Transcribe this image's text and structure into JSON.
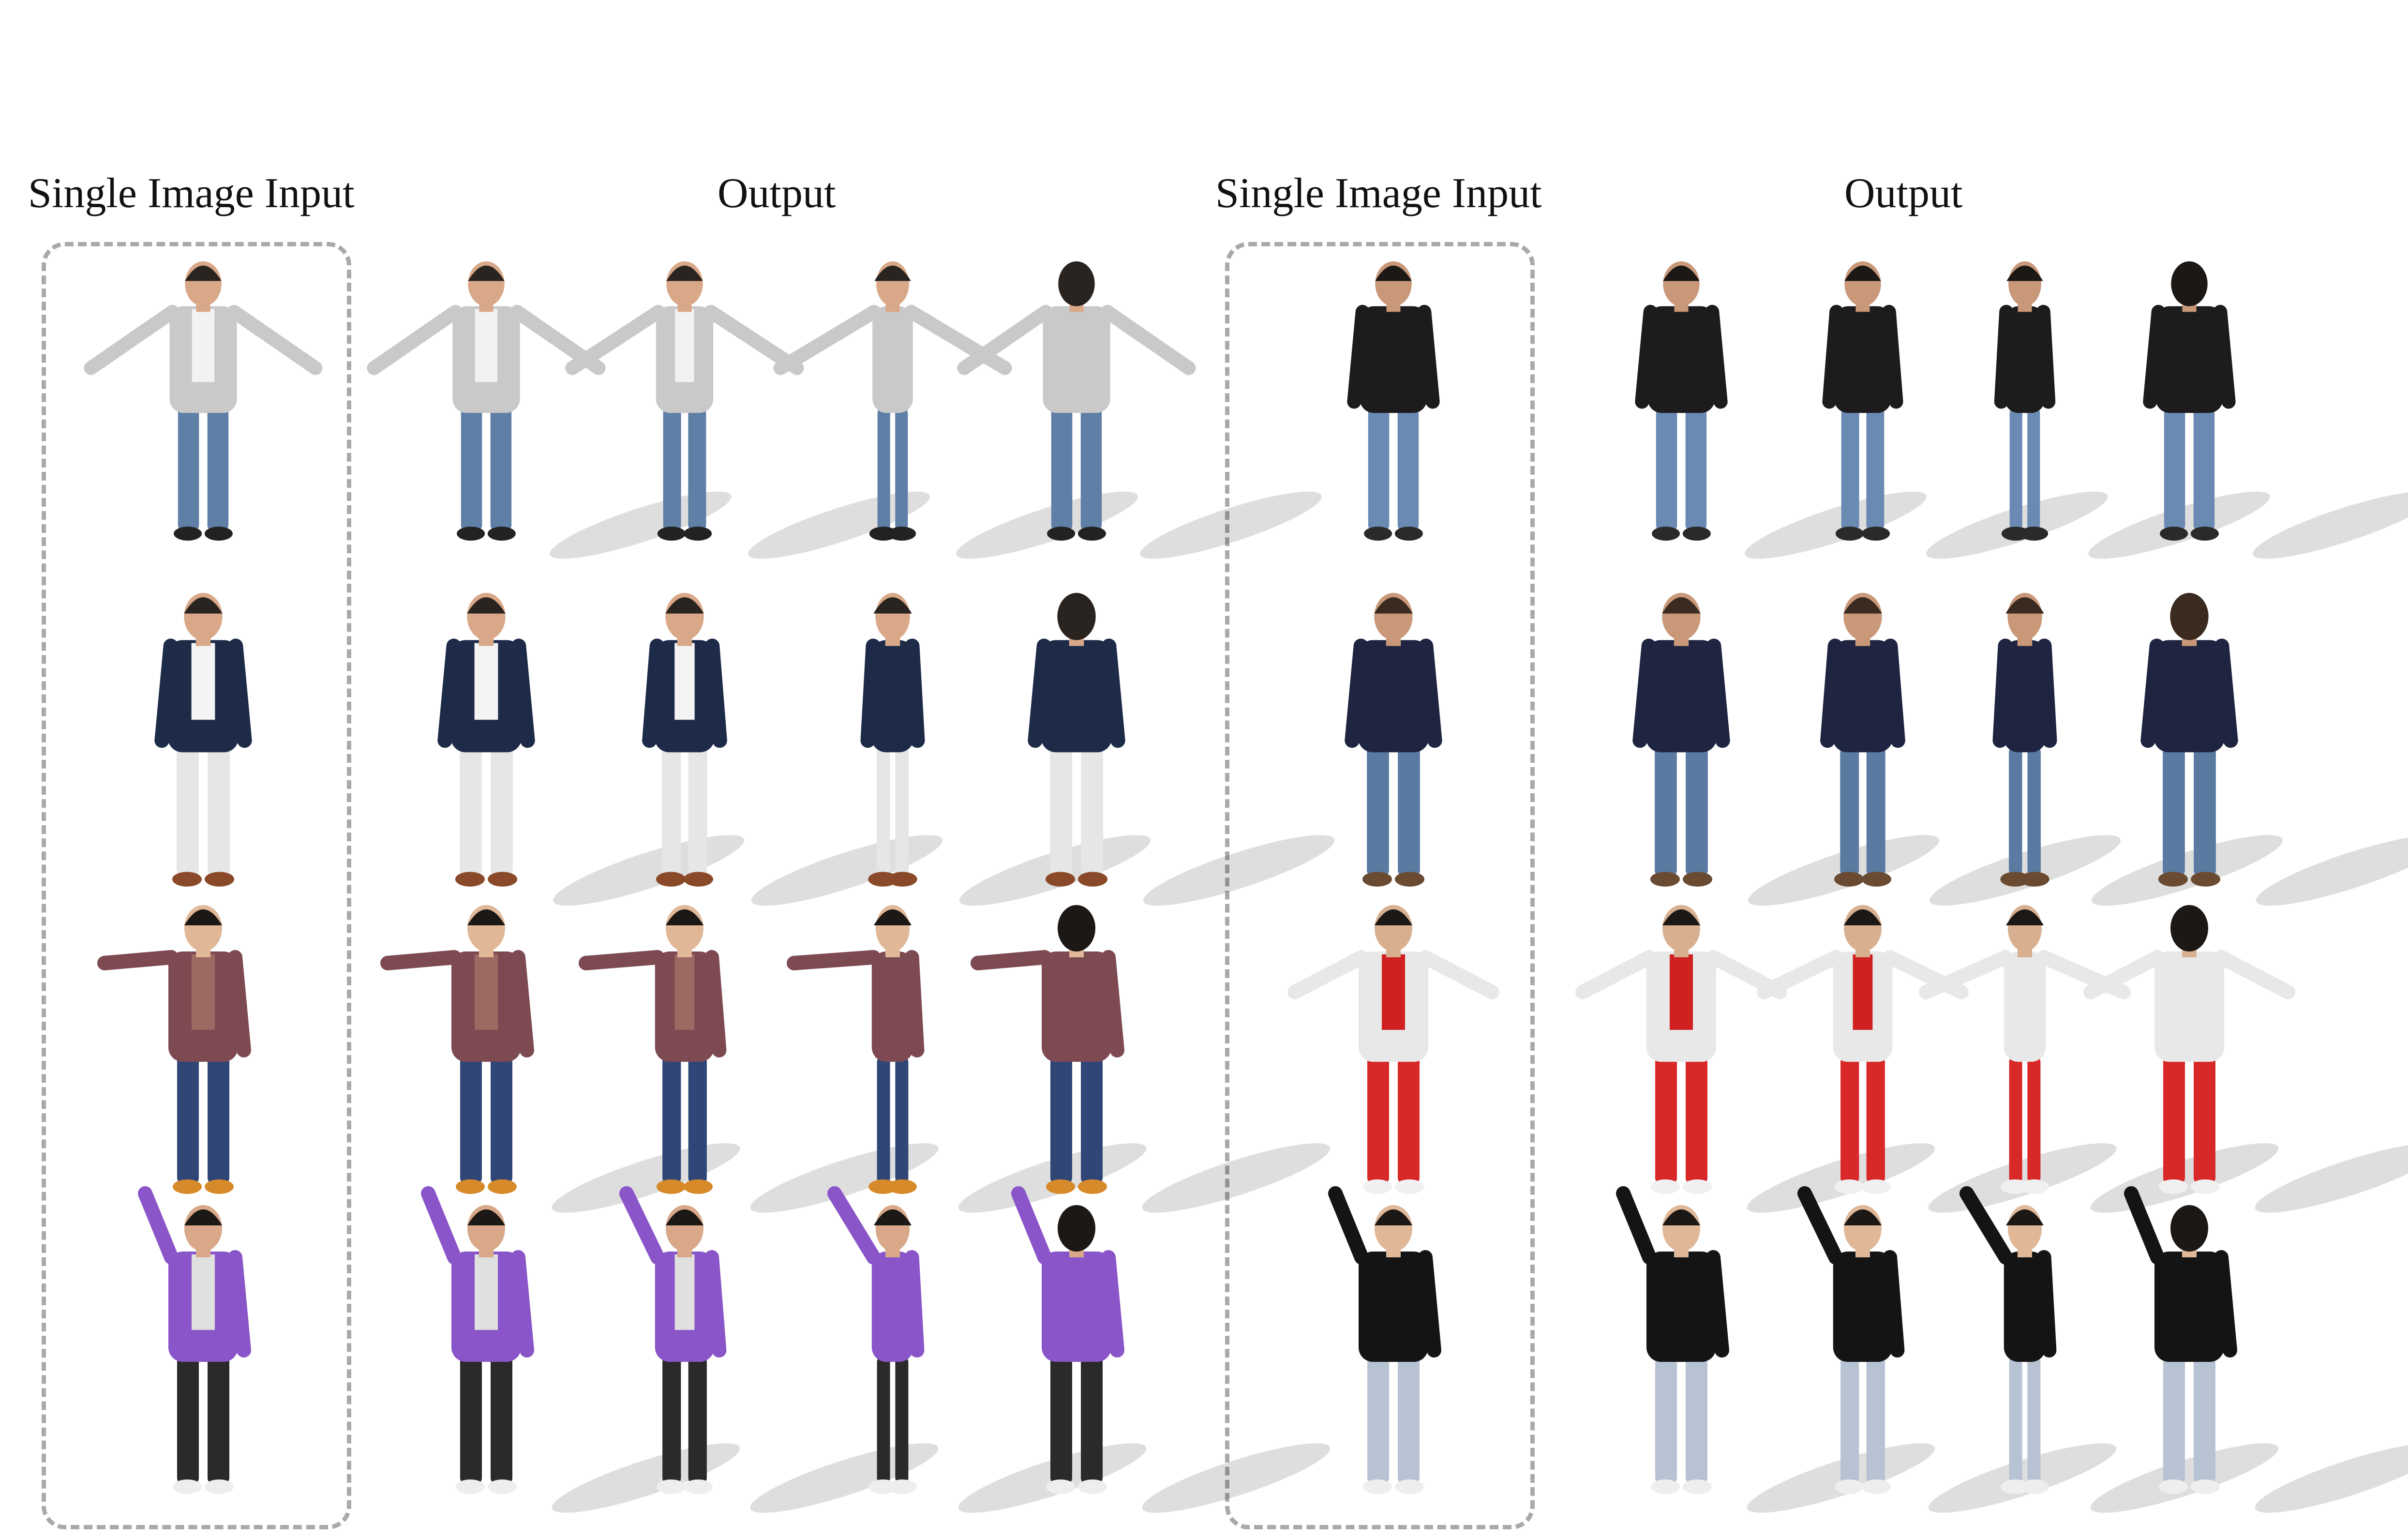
{
  "figure": {
    "panels": [
      {
        "input_label": "Single Image Input",
        "output_label": "Output",
        "rows": [
          {
            "subject": "man in grey cardigan and blue jeans, A-pose",
            "colors": {
              "top": "#c9c9c9",
              "inner": "#f2f2f2",
              "bottom": "#5f7fa6",
              "shoes": "#222222",
              "skin": "#d9a888",
              "hair": "#2a2420"
            },
            "pose": "a-pose"
          },
          {
            "subject": "man in navy blazer and white trousers",
            "colors": {
              "top": "#1d2a48",
              "inner": "#f4f4f4",
              "bottom": "#e6e6e6",
              "shoes": "#8a4a2a",
              "skin": "#d9a888",
              "hair": "#2a2420"
            },
            "pose": "stand"
          },
          {
            "subject": "woman in striped sweater and blue jeans, arm extended",
            "colors": {
              "top": "#7d4a52",
              "inner": "#9c6a62",
              "bottom": "#2f4676",
              "shoes": "#d68a2a",
              "skin": "#e0b898",
              "hair": "#1c1816"
            },
            "pose": "point"
          },
          {
            "subject": "young man in purple graphic t-shirt and black trousers, arm raised",
            "colors": {
              "top": "#8a55c8",
              "inner": "#e0e0e0",
              "bottom": "#2a2a2a",
              "shoes": "#eeeeee",
              "skin": "#d8a888",
              "hair": "#1c1816"
            },
            "pose": "wave"
          }
        ]
      },
      {
        "input_label": "Single Image Input",
        "output_label": "Output",
        "rows": [
          {
            "subject": "man in black hoodie and blue jeans",
            "colors": {
              "top": "#1c1c1e",
              "inner": "#1c1c1e",
              "bottom": "#6a8ab3",
              "shoes": "#2a2a2a",
              "skin": "#c89878",
              "hair": "#1c1816"
            },
            "pose": "stand"
          },
          {
            "subject": "man in navy t-shirt and blue jeans",
            "colors": {
              "top": "#1f2440",
              "inner": "#1f2440",
              "bottom": "#5a7aa2",
              "shoes": "#6a4a30",
              "skin": "#c89878",
              "hair": "#3a2a20"
            },
            "pose": "stand"
          },
          {
            "subject": "young man in white and red sports kit, palms up",
            "colors": {
              "top": "#e8e8e8",
              "inner": "#d02020",
              "bottom": "#d82828",
              "shoes": "#f0f0f0",
              "skin": "#d8b090",
              "hair": "#1c1816"
            },
            "pose": "shrug"
          },
          {
            "subject": "woman in black jacket and light grey jeans, arm raised",
            "colors": {
              "top": "#141414",
              "inner": "#141414",
              "bottom": "#b7c3d3",
              "shoes": "#eeeeee",
              "skin": "#e0b898",
              "hair": "#1c1816"
            },
            "pose": "wave"
          }
        ]
      }
    ],
    "output_views": [
      "front",
      "three-quarter",
      "side",
      "back"
    ]
  }
}
